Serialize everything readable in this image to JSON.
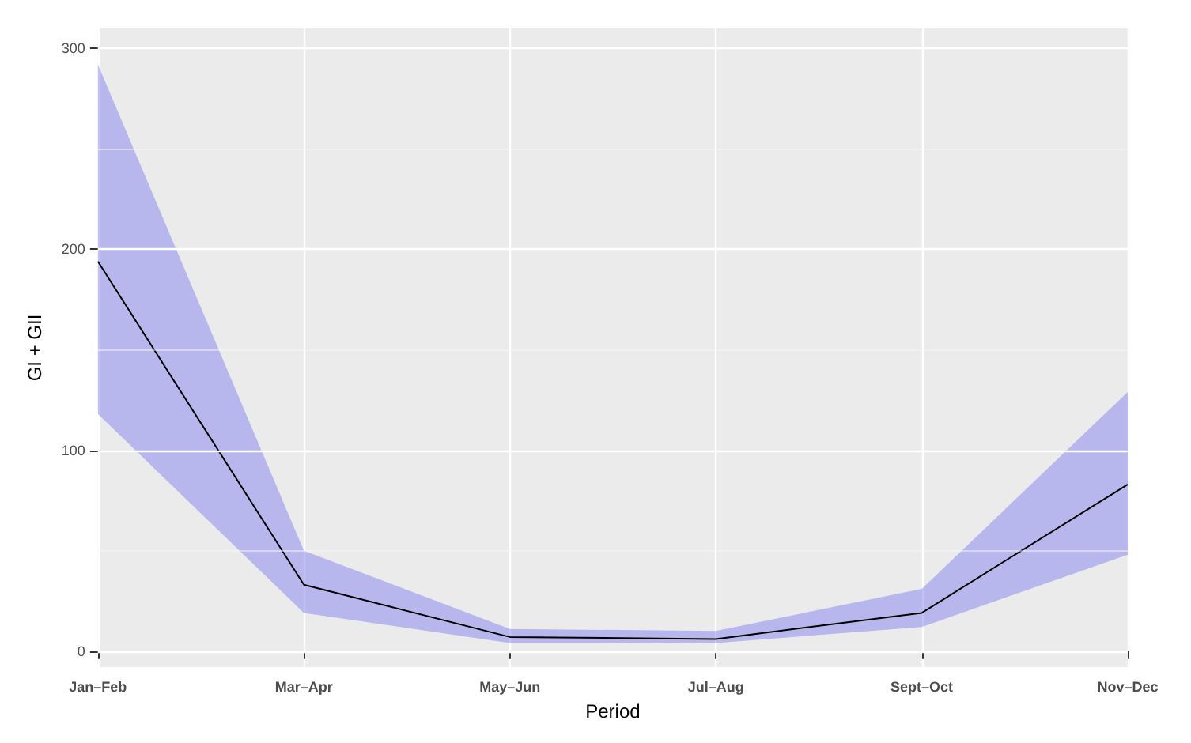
{
  "chart_data": {
    "type": "line",
    "xlabel": "Period",
    "ylabel": "GI + GII",
    "categories": [
      "Jan–Feb",
      "Mar–Apr",
      "May–Jun",
      "Jul–Aug",
      "Sept–Oct",
      "Nov–Dec"
    ],
    "series": [
      {
        "color": "#000000",
        "values": [
          194,
          33,
          7,
          6,
          19,
          83
        ],
        "lower": [
          118,
          19,
          4,
          4,
          12,
          48
        ],
        "upper": [
          292,
          50,
          11,
          10,
          31,
          129
        ]
      }
    ],
    "ylim": [
      -8,
      310
    ],
    "yticks": [
      0,
      100,
      200,
      300
    ],
    "grid": true,
    "marker": "none",
    "line_style": "solid"
  }
}
